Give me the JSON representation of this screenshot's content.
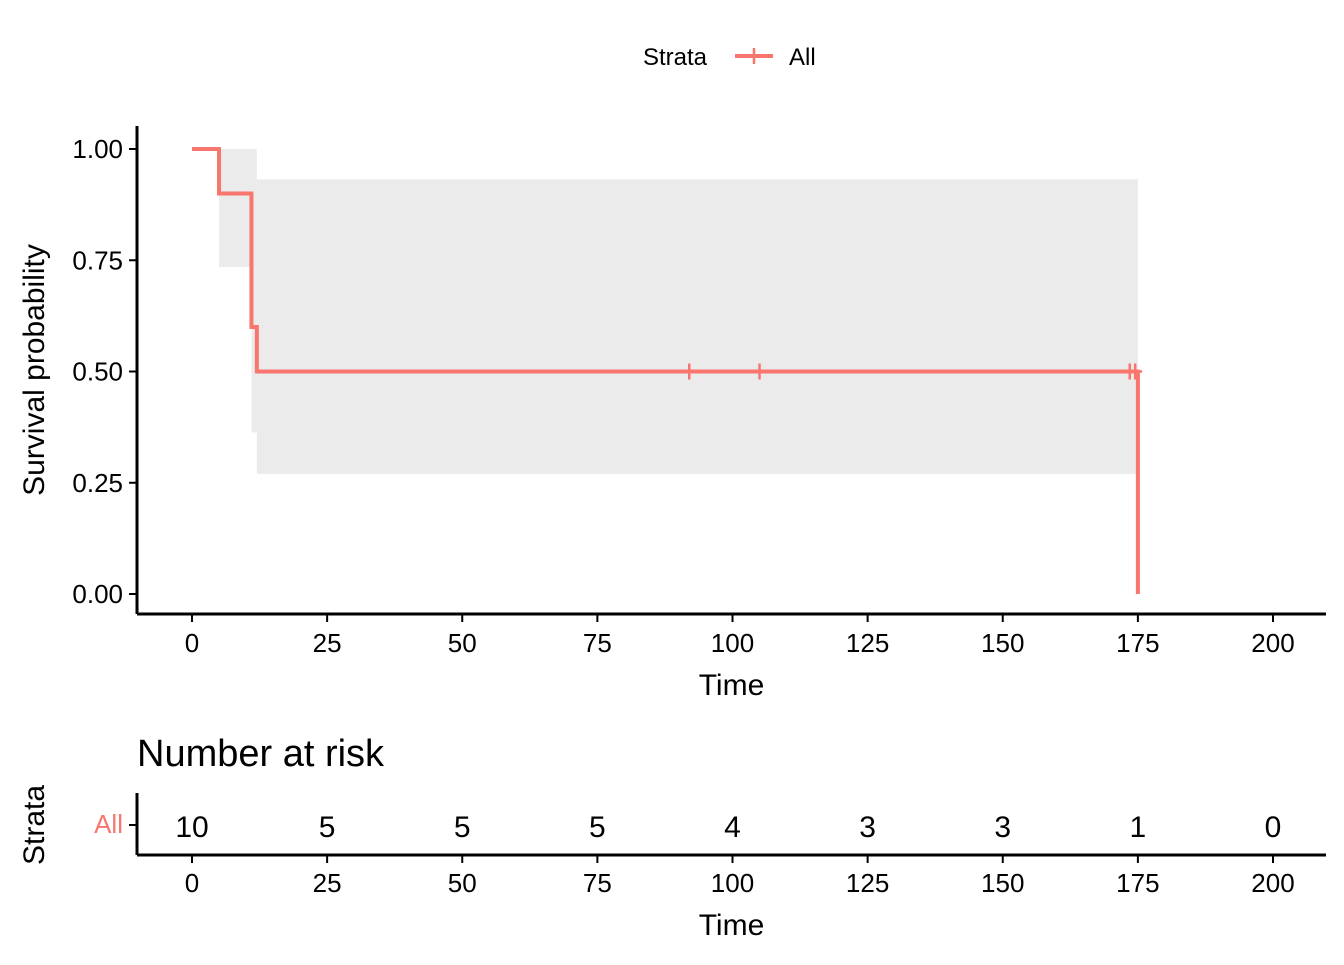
{
  "chart_data": [
    {
      "type": "line",
      "subtype": "kaplan-meier survival curve",
      "title": "",
      "xlabel": "Time",
      "ylabel": "Survival probability",
      "xlim": [
        0,
        200
      ],
      "ylim": [
        0,
        1
      ],
      "x_ticks": [
        0,
        25,
        50,
        75,
        100,
        125,
        150,
        175,
        200
      ],
      "y_ticks": [
        0,
        0.25,
        0.5,
        0.75,
        1.0
      ],
      "y_tick_labels": [
        "0.00",
        "0.25",
        "0.50",
        "0.75",
        "1.00"
      ],
      "grid": false,
      "legend": {
        "position": "top",
        "title": "Strata",
        "entries": [
          "All"
        ]
      },
      "series": [
        {
          "name": "All",
          "color": "#F8766D",
          "step_points": [
            [
              0,
              1.0
            ],
            [
              5,
              0.9
            ],
            [
              11,
              0.6
            ],
            [
              12,
              0.5
            ],
            [
              175,
              0.0
            ]
          ],
          "confidence_band": [
            {
              "x_start": 0,
              "x_end": 5,
              "lower": 1.0,
              "upper": 1.0
            },
            {
              "x_start": 5,
              "x_end": 11,
              "lower": 0.735,
              "upper": 1.0
            },
            {
              "x_start": 11,
              "x_end": 12,
              "lower": 0.363,
              "upper": 1.0
            },
            {
              "x_start": 12,
              "x_end": 175,
              "lower": 0.27,
              "upper": 0.932
            }
          ],
          "censor_times": [
            92,
            105,
            173.5,
            174.5
          ]
        }
      ],
      "band_color": "#EBEBEB"
    },
    {
      "type": "table",
      "title": "Number at risk",
      "xlabel": "Time",
      "ylabel": "Strata",
      "x_ticks": [
        0,
        25,
        50,
        75,
        100,
        125,
        150,
        175,
        200
      ],
      "rows": [
        {
          "name": "All",
          "color": "#F8766D",
          "values": [
            10,
            5,
            5,
            5,
            4,
            3,
            3,
            1,
            0
          ]
        }
      ]
    }
  ]
}
